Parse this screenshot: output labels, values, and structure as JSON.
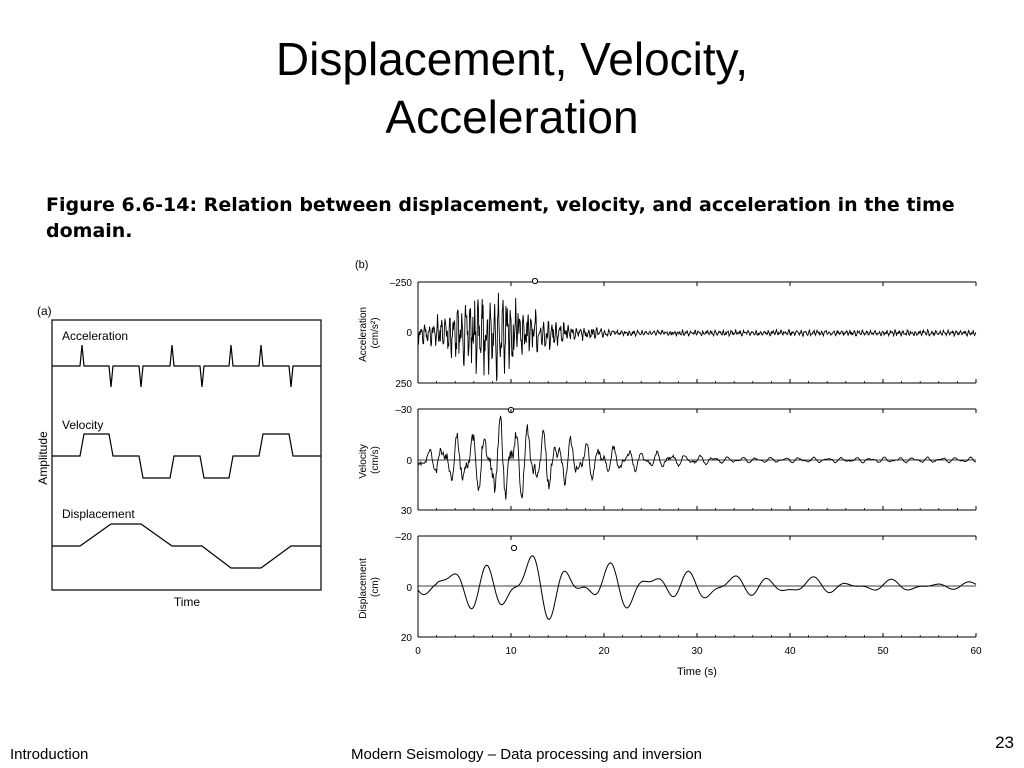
{
  "title": {
    "line1": "Displacement, Velocity,",
    "line2": "Acceleration"
  },
  "caption": "Figure 6.6-14: Relation between displacement, velocity, and acceleration in the time domain.",
  "panel_a": {
    "label": "(a)",
    "y_axis_label": "Amplitude",
    "x_axis_label": "Time",
    "traces": [
      "Acceleration",
      "Velocity",
      "Displacement"
    ]
  },
  "panel_b": {
    "label": "(b)",
    "x_axis_label": "Time (s)",
    "x_ticks": [
      "0",
      "10",
      "20",
      "30",
      "40",
      "50",
      "60"
    ],
    "subplots": [
      {
        "label_line1": "Acceleration",
        "label_line2": "(cm/s²)",
        "tick_top": "–250",
        "tick_mid": "0",
        "tick_bottom": "250"
      },
      {
        "label_line1": "Velocity",
        "label_line2": "(cm/s)",
        "tick_top": "–30",
        "tick_mid": "0",
        "tick_bottom": "30"
      },
      {
        "label_line1": "Displacement",
        "label_line2": "(cm)",
        "tick_top": "–20",
        "tick_mid": "0",
        "tick_bottom": "20"
      }
    ]
  },
  "chart_data": [
    {
      "type": "line",
      "title": "",
      "panel": "(a)",
      "xlabel": "Time",
      "ylabel": "Amplitude",
      "series": [
        {
          "name": "Acceleration",
          "shape": "impulses"
        },
        {
          "name": "Velocity",
          "shape": "boxcar steps"
        },
        {
          "name": "Displacement",
          "shape": "ramps"
        }
      ]
    },
    {
      "type": "line",
      "title": "",
      "panel": "(b)",
      "xlabel": "Time (s)",
      "xlim": [
        0,
        60
      ],
      "x_ticks": [
        0,
        10,
        20,
        30,
        40,
        50,
        60
      ],
      "series": [
        {
          "name": "Acceleration",
          "unit": "cm/s²",
          "ylim": [
            -250,
            250
          ],
          "peak": {
            "x": 12.5,
            "y": -250
          }
        },
        {
          "name": "Velocity",
          "unit": "cm/s",
          "ylim": [
            -30,
            30
          ],
          "peak": {
            "x": 10,
            "y": -30
          }
        },
        {
          "name": "Displacement",
          "unit": "cm",
          "ylim": [
            -20,
            20
          ],
          "peak": {
            "x": 10.2,
            "y": -15
          }
        }
      ]
    }
  ],
  "footer": {
    "left": "Introduction",
    "center": "Modern Seismology – Data processing and inversion",
    "page": "23"
  }
}
